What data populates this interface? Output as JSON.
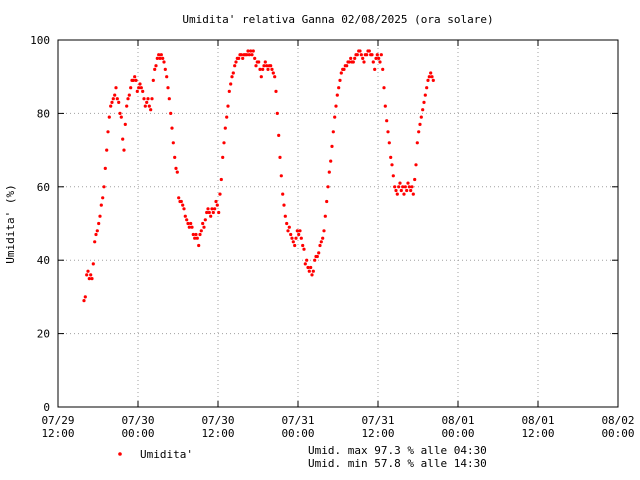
{
  "chart_data": {
    "type": "scatter",
    "title": "Umidita' relativa Ganna 02/08/2025 (ora solare)",
    "ylabel": "Umidita' (%)",
    "xlabel": "",
    "ylim": [
      0,
      100
    ],
    "yticks": [
      0,
      20,
      40,
      60,
      80,
      100
    ],
    "xlim_hours": [
      0,
      84
    ],
    "xticks": [
      {
        "h": 0,
        "line1": "07/29",
        "line2": "12:00"
      },
      {
        "h": 12,
        "line1": "07/30",
        "line2": "00:00"
      },
      {
        "h": 24,
        "line1": "07/30",
        "line2": "12:00"
      },
      {
        "h": 36,
        "line1": "07/31",
        "line2": "00:00"
      },
      {
        "h": 48,
        "line1": "07/31",
        "line2": "12:00"
      },
      {
        "h": 60,
        "line1": "08/01",
        "line2": "00:00"
      },
      {
        "h": 72,
        "line1": "08/01",
        "line2": "12:00"
      },
      {
        "h": 84,
        "line1": "08/02",
        "line2": "00:00"
      }
    ],
    "grid": true,
    "legend_position": "bottom-left",
    "series": [
      {
        "name": "Umidita'",
        "color": "#ff0000",
        "points": [
          [
            3.9,
            29
          ],
          [
            4.1,
            30
          ],
          [
            4.3,
            36
          ],
          [
            4.5,
            37
          ],
          [
            4.7,
            35
          ],
          [
            4.9,
            36
          ],
          [
            5.1,
            35
          ],
          [
            5.3,
            39
          ],
          [
            5.5,
            45
          ],
          [
            5.7,
            47
          ],
          [
            5.9,
            48
          ],
          [
            6.1,
            50
          ],
          [
            6.3,
            52
          ],
          [
            6.5,
            55
          ],
          [
            6.7,
            57
          ],
          [
            6.9,
            60
          ],
          [
            7.1,
            65
          ],
          [
            7.3,
            70
          ],
          [
            7.5,
            75
          ],
          [
            7.7,
            79
          ],
          [
            7.9,
            82
          ],
          [
            8.1,
            83
          ],
          [
            8.3,
            84
          ],
          [
            8.5,
            85
          ],
          [
            8.7,
            87
          ],
          [
            8.9,
            84
          ],
          [
            9.1,
            83
          ],
          [
            9.3,
            80
          ],
          [
            9.5,
            79
          ],
          [
            9.7,
            73
          ],
          [
            9.9,
            70
          ],
          [
            10.1,
            77
          ],
          [
            10.3,
            82
          ],
          [
            10.5,
            84
          ],
          [
            10.7,
            85
          ],
          [
            10.9,
            87
          ],
          [
            11.1,
            89
          ],
          [
            11.3,
            89
          ],
          [
            11.5,
            90
          ],
          [
            11.7,
            89
          ],
          [
            11.9,
            86
          ],
          [
            12.1,
            87
          ],
          [
            12.3,
            88
          ],
          [
            12.5,
            87
          ],
          [
            12.7,
            86
          ],
          [
            12.9,
            84
          ],
          [
            13.1,
            82
          ],
          [
            13.3,
            83
          ],
          [
            13.5,
            84
          ],
          [
            13.7,
            82
          ],
          [
            13.9,
            81
          ],
          [
            14.1,
            84
          ],
          [
            14.3,
            89
          ],
          [
            14.5,
            92
          ],
          [
            14.7,
            93
          ],
          [
            14.9,
            95
          ],
          [
            15.1,
            96
          ],
          [
            15.3,
            95
          ],
          [
            15.5,
            96
          ],
          [
            15.7,
            95
          ],
          [
            15.9,
            94
          ],
          [
            16.1,
            92
          ],
          [
            16.3,
            90
          ],
          [
            16.5,
            87
          ],
          [
            16.7,
            84
          ],
          [
            16.9,
            80
          ],
          [
            17.1,
            76
          ],
          [
            17.3,
            72
          ],
          [
            17.5,
            68
          ],
          [
            17.7,
            65
          ],
          [
            17.9,
            64
          ],
          [
            18.1,
            57
          ],
          [
            18.3,
            56
          ],
          [
            18.5,
            56
          ],
          [
            18.7,
            55
          ],
          [
            18.9,
            54
          ],
          [
            19.1,
            52
          ],
          [
            19.3,
            51
          ],
          [
            19.5,
            50
          ],
          [
            19.7,
            49
          ],
          [
            19.9,
            50
          ],
          [
            20.1,
            49
          ],
          [
            20.3,
            47
          ],
          [
            20.5,
            46
          ],
          [
            20.7,
            47
          ],
          [
            20.9,
            46
          ],
          [
            21.1,
            44
          ],
          [
            21.3,
            47
          ],
          [
            21.5,
            48
          ],
          [
            21.7,
            50
          ],
          [
            21.9,
            49
          ],
          [
            22.1,
            51
          ],
          [
            22.3,
            53
          ],
          [
            22.5,
            54
          ],
          [
            22.7,
            53
          ],
          [
            22.9,
            52
          ],
          [
            23.1,
            54
          ],
          [
            23.3,
            53
          ],
          [
            23.5,
            54
          ],
          [
            23.7,
            56
          ],
          [
            23.9,
            55
          ],
          [
            24.1,
            53
          ],
          [
            24.3,
            58
          ],
          [
            24.5,
            62
          ],
          [
            24.7,
            68
          ],
          [
            24.9,
            72
          ],
          [
            25.1,
            76
          ],
          [
            25.3,
            79
          ],
          [
            25.5,
            82
          ],
          [
            25.7,
            86
          ],
          [
            25.9,
            88
          ],
          [
            26.1,
            90
          ],
          [
            26.3,
            91
          ],
          [
            26.5,
            93
          ],
          [
            26.7,
            94
          ],
          [
            26.9,
            95
          ],
          [
            27.1,
            95
          ],
          [
            27.3,
            96
          ],
          [
            27.5,
            96
          ],
          [
            27.7,
            95
          ],
          [
            27.9,
            96
          ],
          [
            28.1,
            96
          ],
          [
            28.3,
            96
          ],
          [
            28.5,
            97
          ],
          [
            28.7,
            96
          ],
          [
            28.9,
            97
          ],
          [
            29.1,
            96
          ],
          [
            29.3,
            97
          ],
          [
            29.5,
            95
          ],
          [
            29.7,
            93
          ],
          [
            29.9,
            94
          ],
          [
            30.1,
            94
          ],
          [
            30.3,
            92
          ],
          [
            30.5,
            90
          ],
          [
            30.7,
            92
          ],
          [
            30.9,
            93
          ],
          [
            31.1,
            94
          ],
          [
            31.3,
            93
          ],
          [
            31.5,
            92
          ],
          [
            31.7,
            93
          ],
          [
            31.9,
            93
          ],
          [
            32.1,
            92
          ],
          [
            32.3,
            91
          ],
          [
            32.5,
            90
          ],
          [
            32.7,
            86
          ],
          [
            32.9,
            80
          ],
          [
            33.1,
            74
          ],
          [
            33.3,
            68
          ],
          [
            33.5,
            63
          ],
          [
            33.7,
            58
          ],
          [
            33.9,
            55
          ],
          [
            34.1,
            52
          ],
          [
            34.3,
            50
          ],
          [
            34.5,
            48
          ],
          [
            34.7,
            49
          ],
          [
            34.9,
            47
          ],
          [
            35.1,
            46
          ],
          [
            35.3,
            45
          ],
          [
            35.5,
            44
          ],
          [
            35.7,
            46
          ],
          [
            35.9,
            48
          ],
          [
            36.1,
            47
          ],
          [
            36.3,
            48
          ],
          [
            36.5,
            46
          ],
          [
            36.7,
            44
          ],
          [
            36.9,
            43
          ],
          [
            37.1,
            39
          ],
          [
            37.3,
            40
          ],
          [
            37.5,
            38
          ],
          [
            37.7,
            37
          ],
          [
            37.9,
            38
          ],
          [
            38.1,
            36
          ],
          [
            38.3,
            37
          ],
          [
            38.5,
            40
          ],
          [
            38.7,
            41
          ],
          [
            38.9,
            41
          ],
          [
            39.1,
            42
          ],
          [
            39.3,
            44
          ],
          [
            39.5,
            45
          ],
          [
            39.7,
            46
          ],
          [
            39.9,
            48
          ],
          [
            40.1,
            52
          ],
          [
            40.3,
            56
          ],
          [
            40.5,
            60
          ],
          [
            40.7,
            64
          ],
          [
            40.9,
            67
          ],
          [
            41.1,
            71
          ],
          [
            41.3,
            75
          ],
          [
            41.5,
            79
          ],
          [
            41.7,
            82
          ],
          [
            41.9,
            85
          ],
          [
            42.1,
            87
          ],
          [
            42.3,
            89
          ],
          [
            42.5,
            91
          ],
          [
            42.7,
            92
          ],
          [
            42.9,
            92
          ],
          [
            43.1,
            93
          ],
          [
            43.3,
            93
          ],
          [
            43.5,
            94
          ],
          [
            43.7,
            94
          ],
          [
            43.9,
            95
          ],
          [
            44.1,
            94
          ],
          [
            44.3,
            94
          ],
          [
            44.5,
            95
          ],
          [
            44.7,
            96
          ],
          [
            44.9,
            96
          ],
          [
            45.1,
            97
          ],
          [
            45.3,
            97
          ],
          [
            45.5,
            96
          ],
          [
            45.7,
            95
          ],
          [
            45.9,
            94
          ],
          [
            46.1,
            96
          ],
          [
            46.3,
            96
          ],
          [
            46.5,
            97
          ],
          [
            46.7,
            97
          ],
          [
            46.9,
            96
          ],
          [
            47.1,
            96
          ],
          [
            47.3,
            94
          ],
          [
            47.5,
            92
          ],
          [
            47.7,
            95
          ],
          [
            47.9,
            96
          ],
          [
            48.1,
            95
          ],
          [
            48.3,
            94
          ],
          [
            48.5,
            96
          ],
          [
            48.7,
            92
          ],
          [
            48.9,
            87
          ],
          [
            49.1,
            82
          ],
          [
            49.3,
            78
          ],
          [
            49.5,
            75
          ],
          [
            49.7,
            72
          ],
          [
            49.9,
            68
          ],
          [
            50.1,
            66
          ],
          [
            50.3,
            63
          ],
          [
            50.5,
            60
          ],
          [
            50.7,
            59
          ],
          [
            50.9,
            58
          ],
          [
            51.1,
            60
          ],
          [
            51.3,
            61
          ],
          [
            51.5,
            59
          ],
          [
            51.7,
            60
          ],
          [
            51.9,
            58
          ],
          [
            52.1,
            60
          ],
          [
            52.3,
            59
          ],
          [
            52.5,
            61
          ],
          [
            52.7,
            60
          ],
          [
            52.9,
            59
          ],
          [
            53.1,
            60
          ],
          [
            53.3,
            58
          ],
          [
            53.5,
            62
          ],
          [
            53.7,
            66
          ],
          [
            53.9,
            72
          ],
          [
            54.1,
            75
          ],
          [
            54.3,
            77
          ],
          [
            54.5,
            79
          ],
          [
            54.7,
            81
          ],
          [
            54.9,
            83
          ],
          [
            55.1,
            85
          ],
          [
            55.3,
            87
          ],
          [
            55.5,
            89
          ],
          [
            55.7,
            90
          ],
          [
            55.9,
            91
          ],
          [
            56.1,
            90
          ],
          [
            56.3,
            89
          ]
        ]
      }
    ],
    "annotations": [
      "Umid. max 97.3 % alle 04:30",
      "Umid. min 57.8 % alle 14:30"
    ]
  }
}
